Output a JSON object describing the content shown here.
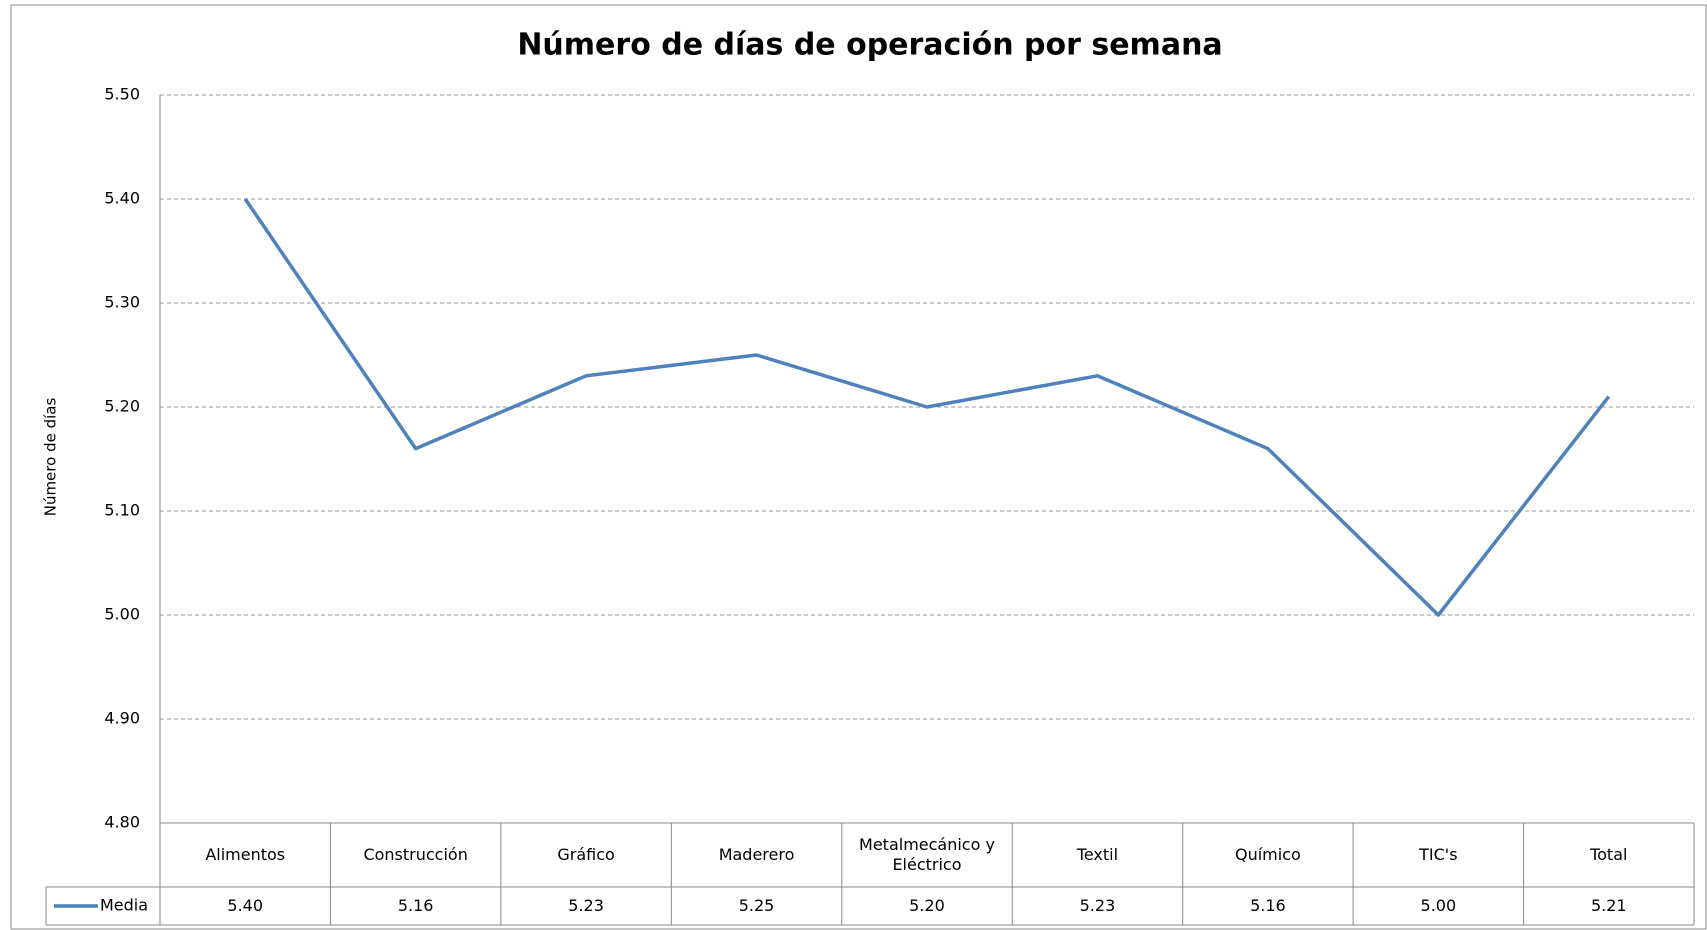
{
  "chart_data": {
    "type": "line",
    "title": "Número de días de operación por semana",
    "y_label": "Número de días",
    "categories": [
      "Alimentos",
      "Construcción",
      "Gráfico",
      "Maderero",
      "Metalmecánico y Eléctrico",
      "Textil",
      "Químico",
      "TIC's",
      "Total"
    ],
    "series": [
      {
        "name": "Media",
        "color": "#4f81bd",
        "values": [
          5.4,
          5.16,
          5.23,
          5.25,
          5.2,
          5.23,
          5.16,
          5.0,
          5.21
        ],
        "value_labels": [
          "5.40",
          "5.16",
          "5.23",
          "5.25",
          "5.20",
          "5.23",
          "5.16",
          "5.00",
          "5.21"
        ]
      }
    ],
    "ylim": [
      4.8,
      5.5
    ],
    "yticks": [
      {
        "value": 4.8,
        "label": "4.80"
      },
      {
        "value": 4.9,
        "label": "4.90"
      },
      {
        "value": 5.0,
        "label": "5.00"
      },
      {
        "value": 5.1,
        "label": "5.10"
      },
      {
        "value": 5.2,
        "label": "5.20"
      },
      {
        "value": 5.3,
        "label": "5.30"
      },
      {
        "value": 5.4,
        "label": "5.40"
      },
      {
        "value": 5.5,
        "label": "5.50"
      }
    ],
    "grid": true
  }
}
